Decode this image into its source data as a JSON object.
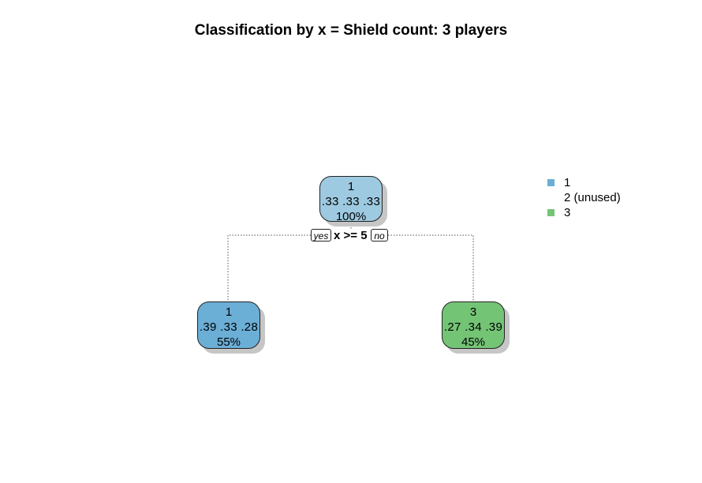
{
  "title": "Classification by x = Shield count: 3 players",
  "colors": {
    "class1": "#6baed6",
    "class1_light": "#9ecae1",
    "class3": "#74c476"
  },
  "tree": {
    "root": {
      "class": "1",
      "probs": ".33  .33  .33",
      "pct": "100%"
    },
    "split": {
      "rule": "x >= 5",
      "yes": "yes",
      "no": "no"
    },
    "left": {
      "class": "1",
      "probs": ".39  .33  .28",
      "pct": "55%"
    },
    "right": {
      "class": "3",
      "probs": ".27  .34  .39",
      "pct": "45%"
    }
  },
  "legend": [
    {
      "label": "1",
      "swatch": "#6baed6"
    },
    {
      "label": "2 (unused)",
      "swatch": null
    },
    {
      "label": "3",
      "swatch": "#74c476"
    }
  ]
}
